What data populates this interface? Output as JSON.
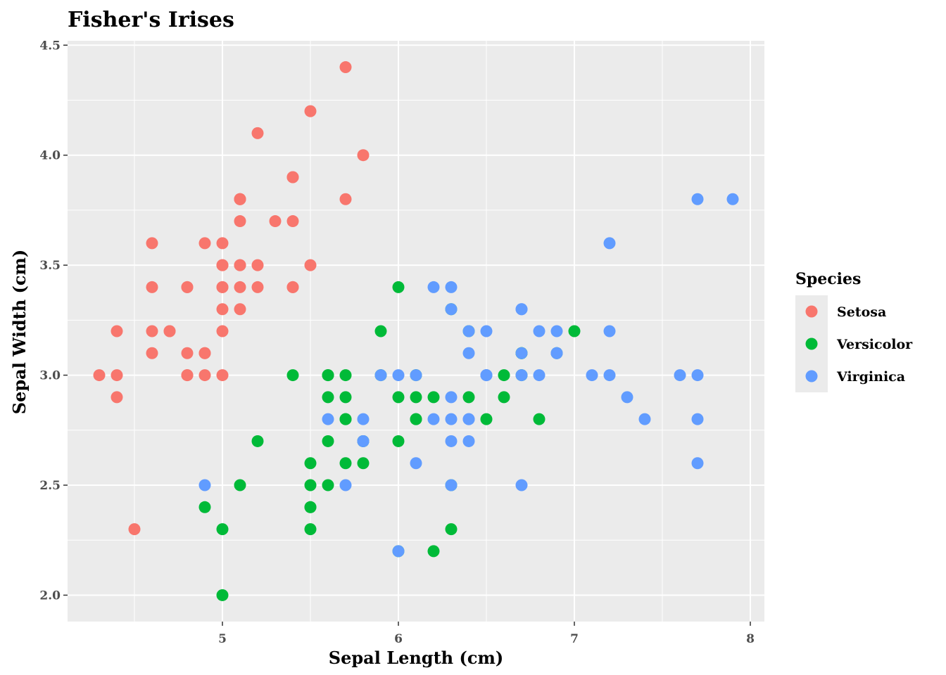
{
  "chart_data": {
    "type": "scatter",
    "title": "Fisher's Irises",
    "xlabel": "Sepal Length (cm)",
    "ylabel": "Sepal Width (cm)",
    "xlim": [
      4.12,
      8.08
    ],
    "ylim": [
      1.88,
      4.52
    ],
    "x_ticks": [
      5,
      6,
      7,
      8
    ],
    "x_tick_labels": [
      "5",
      "6",
      "7",
      "8"
    ],
    "y_ticks": [
      2.0,
      2.5,
      3.0,
      3.5,
      4.0,
      4.5
    ],
    "y_tick_labels": [
      "2.0",
      "2.5",
      "3.0",
      "3.5",
      "4.0",
      "4.5"
    ],
    "grid": true,
    "legend_title": "Species",
    "legend_position": "right",
    "series": [
      {
        "name": "Setosa",
        "color": "#F8766D",
        "points": [
          [
            5.1,
            3.5
          ],
          [
            4.9,
            3.0
          ],
          [
            4.7,
            3.2
          ],
          [
            4.6,
            3.1
          ],
          [
            5.0,
            3.6
          ],
          [
            5.4,
            3.9
          ],
          [
            4.6,
            3.4
          ],
          [
            5.0,
            3.4
          ],
          [
            4.4,
            2.9
          ],
          [
            4.9,
            3.1
          ],
          [
            5.4,
            3.7
          ],
          [
            4.8,
            3.4
          ],
          [
            4.8,
            3.0
          ],
          [
            4.3,
            3.0
          ],
          [
            5.8,
            4.0
          ],
          [
            5.7,
            4.4
          ],
          [
            5.4,
            3.9
          ],
          [
            5.1,
            3.5
          ],
          [
            5.7,
            3.8
          ],
          [
            5.1,
            3.8
          ],
          [
            5.4,
            3.4
          ],
          [
            5.1,
            3.7
          ],
          [
            4.6,
            3.6
          ],
          [
            5.1,
            3.3
          ],
          [
            4.8,
            3.4
          ],
          [
            5.0,
            3.0
          ],
          [
            5.0,
            3.4
          ],
          [
            5.2,
            3.5
          ],
          [
            5.2,
            3.4
          ],
          [
            4.7,
            3.2
          ],
          [
            4.8,
            3.1
          ],
          [
            5.4,
            3.4
          ],
          [
            5.2,
            4.1
          ],
          [
            5.5,
            4.2
          ],
          [
            4.9,
            3.1
          ],
          [
            5.0,
            3.2
          ],
          [
            5.5,
            3.5
          ],
          [
            4.9,
            3.6
          ],
          [
            4.4,
            3.0
          ],
          [
            5.1,
            3.4
          ],
          [
            5.0,
            3.5
          ],
          [
            4.5,
            2.3
          ],
          [
            4.4,
            3.2
          ],
          [
            5.0,
            3.5
          ],
          [
            5.1,
            3.8
          ],
          [
            4.8,
            3.0
          ],
          [
            5.1,
            3.8
          ],
          [
            4.6,
            3.2
          ],
          [
            5.3,
            3.7
          ],
          [
            5.0,
            3.3
          ]
        ]
      },
      {
        "name": "Versicolor",
        "color": "#00BA38",
        "points": [
          [
            7.0,
            3.2
          ],
          [
            6.4,
            3.2
          ],
          [
            6.9,
            3.1
          ],
          [
            5.5,
            2.3
          ],
          [
            6.5,
            2.8
          ],
          [
            5.7,
            2.8
          ],
          [
            6.3,
            3.3
          ],
          [
            4.9,
            2.4
          ],
          [
            6.6,
            2.9
          ],
          [
            5.2,
            2.7
          ],
          [
            5.0,
            2.0
          ],
          [
            5.9,
            3.0
          ],
          [
            6.0,
            2.2
          ],
          [
            6.1,
            2.9
          ],
          [
            5.6,
            2.9
          ],
          [
            6.7,
            3.1
          ],
          [
            5.6,
            3.0
          ],
          [
            5.8,
            2.7
          ],
          [
            6.2,
            2.2
          ],
          [
            5.6,
            2.5
          ],
          [
            5.9,
            3.2
          ],
          [
            6.1,
            2.8
          ],
          [
            6.3,
            2.5
          ],
          [
            6.1,
            2.8
          ],
          [
            6.4,
            2.9
          ],
          [
            6.6,
            3.0
          ],
          [
            6.8,
            2.8
          ],
          [
            6.7,
            3.0
          ],
          [
            6.0,
            2.9
          ],
          [
            5.7,
            2.6
          ],
          [
            5.5,
            2.4
          ],
          [
            5.5,
            2.4
          ],
          [
            5.8,
            2.7
          ],
          [
            6.0,
            2.7
          ],
          [
            5.4,
            3.0
          ],
          [
            6.0,
            3.4
          ],
          [
            6.7,
            3.1
          ],
          [
            6.3,
            2.3
          ],
          [
            5.6,
            3.0
          ],
          [
            5.5,
            2.5
          ],
          [
            5.5,
            2.6
          ],
          [
            6.1,
            3.0
          ],
          [
            5.8,
            2.6
          ],
          [
            5.0,
            2.3
          ],
          [
            5.6,
            2.7
          ],
          [
            5.7,
            3.0
          ],
          [
            5.7,
            2.9
          ],
          [
            6.2,
            2.9
          ],
          [
            5.1,
            2.5
          ],
          [
            5.7,
            2.8
          ]
        ]
      },
      {
        "name": "Virginica",
        "color": "#619CFF",
        "points": [
          [
            6.3,
            3.3
          ],
          [
            5.8,
            2.7
          ],
          [
            7.1,
            3.0
          ],
          [
            6.3,
            2.9
          ],
          [
            6.5,
            3.0
          ],
          [
            7.6,
            3.0
          ],
          [
            4.9,
            2.5
          ],
          [
            7.3,
            2.9
          ],
          [
            6.7,
            2.5
          ],
          [
            7.2,
            3.6
          ],
          [
            6.5,
            3.2
          ],
          [
            6.4,
            2.7
          ],
          [
            6.8,
            3.0
          ],
          [
            5.7,
            2.5
          ],
          [
            5.8,
            2.8
          ],
          [
            6.4,
            3.2
          ],
          [
            6.5,
            3.0
          ],
          [
            7.7,
            3.8
          ],
          [
            7.7,
            2.6
          ],
          [
            6.0,
            2.2
          ],
          [
            6.9,
            3.2
          ],
          [
            5.6,
            2.8
          ],
          [
            7.7,
            2.8
          ],
          [
            6.3,
            2.7
          ],
          [
            6.7,
            3.3
          ],
          [
            7.2,
            3.2
          ],
          [
            6.2,
            2.8
          ],
          [
            6.1,
            3.0
          ],
          [
            6.4,
            2.8
          ],
          [
            7.2,
            3.0
          ],
          [
            7.4,
            2.8
          ],
          [
            7.9,
            3.8
          ],
          [
            6.4,
            2.8
          ],
          [
            6.3,
            2.8
          ],
          [
            6.1,
            2.6
          ],
          [
            7.7,
            3.0
          ],
          [
            6.3,
            3.4
          ],
          [
            6.4,
            3.1
          ],
          [
            6.0,
            3.0
          ],
          [
            6.9,
            3.1
          ],
          [
            6.7,
            3.1
          ],
          [
            6.9,
            3.1
          ],
          [
            5.8,
            2.7
          ],
          [
            6.8,
            3.2
          ],
          [
            6.7,
            3.3
          ],
          [
            6.7,
            3.0
          ],
          [
            6.3,
            2.5
          ],
          [
            6.5,
            3.0
          ],
          [
            6.2,
            3.4
          ],
          [
            5.9,
            3.0
          ]
        ]
      }
    ]
  }
}
